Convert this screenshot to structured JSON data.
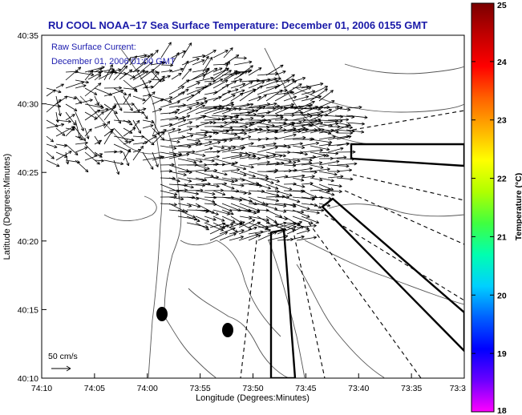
{
  "title": "RU COOL  NOAA−17  Sea Surface Temperature:  December 01, 2006 0155 GMT",
  "legend": {
    "line1": "Raw Surface Current:",
    "line2": "December 01, 2006 01:00 GMT"
  },
  "scale_label": "50 cm/s",
  "axes": {
    "xlabel": "Longitude (Degrees:Minutes)",
    "ylabel": "Latitude (Degrees:Minutes)",
    "x_ticks": [
      "74:10",
      "74:05",
      "74:00",
      "73:55",
      "73:50",
      "73:45",
      "73:40",
      "73:35",
      "73:3"
    ],
    "y_ticks": [
      "40:35",
      "40:30",
      "40:25",
      "40:20",
      "40:15",
      "40:10"
    ]
  },
  "colorbar": {
    "label": "Temperature (°C)",
    "min": 18,
    "max": 25,
    "ticks": [
      "25",
      "24",
      "23",
      "22",
      "21",
      "20",
      "19",
      "18"
    ],
    "colors": [
      "#ff00ff",
      "#6a00ff",
      "#0000ff",
      "#0060ff",
      "#00d0ff",
      "#00ffb0",
      "#40ff40",
      "#b0ff00",
      "#ffff00",
      "#ffb000",
      "#ff6000",
      "#ff0000",
      "#c00000",
      "#7a0000"
    ]
  }
}
